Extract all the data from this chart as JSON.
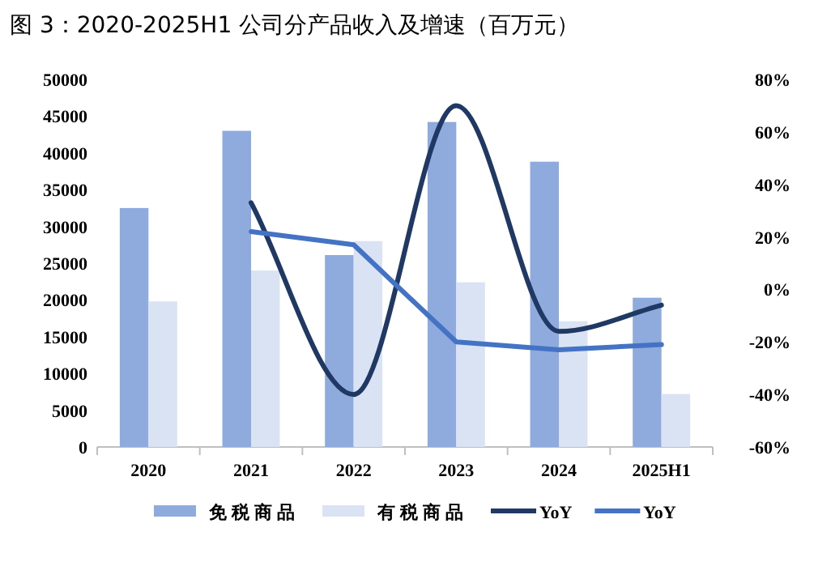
{
  "chart_data": {
    "type": "bar",
    "title": "图 3：2020-2025H1 公司分产品收入及增速（百万元）",
    "categories": [
      "2020",
      "2021",
      "2022",
      "2023",
      "2024",
      "2025H1"
    ],
    "series": [
      {
        "name": "免税商品",
        "color": "#8faadc",
        "values": [
          32500,
          43000,
          26100,
          44200,
          38800,
          20300
        ]
      },
      {
        "name": "有税商品",
        "color": "#dae3f3",
        "values": [
          19800,
          24000,
          28000,
          22400,
          17100,
          7200
        ]
      },
      {
        "name": "YoY",
        "type": "line",
        "axis": "y2",
        "color": "#1f3864",
        "values": [
          null,
          33,
          -40,
          70,
          -16,
          -6
        ]
      },
      {
        "name": "YoY",
        "type": "line",
        "axis": "y2",
        "color": "#4472c4",
        "values": [
          null,
          22,
          17,
          -20,
          -23,
          -21
        ]
      }
    ],
    "ylim": [
      0,
      50000
    ],
    "yticks": [
      0,
      5000,
      10000,
      15000,
      20000,
      25000,
      30000,
      35000,
      40000,
      45000,
      50000
    ],
    "y2lim": [
      -60,
      80
    ],
    "y2ticks": [
      {
        "value": -60,
        "label": "-60%"
      },
      {
        "value": -40,
        "label": "-40%"
      },
      {
        "value": -20,
        "label": "-20%"
      },
      {
        "value": 0,
        "label": "0%"
      },
      {
        "value": 20,
        "label": "20%"
      },
      {
        "value": 40,
        "label": "40%"
      },
      {
        "value": 60,
        "label": "60%"
      },
      {
        "value": 80,
        "label": "80%"
      }
    ],
    "legend": "bottom"
  }
}
